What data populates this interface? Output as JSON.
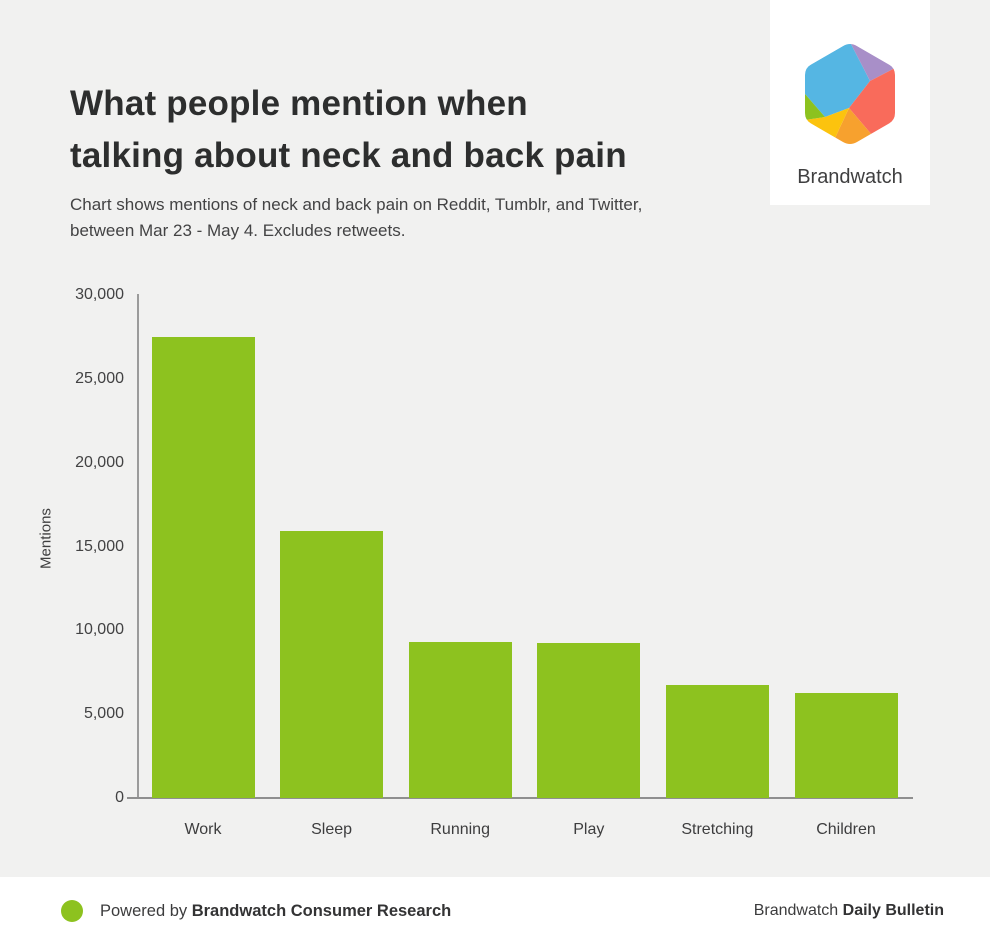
{
  "header": {
    "title_line1": "What people mention when",
    "title_line2": "talking about neck and back pain",
    "subtitle_line1": "Chart shows mentions of neck and back pain on Reddit, Tumblr, and Twitter,",
    "subtitle_line2": "between Mar 23 - May 4. Excludes retweets."
  },
  "logo": {
    "wordmark": "Brandwatch",
    "facets": {
      "blue": "#55b6e3",
      "purple": "#a88fc8",
      "coral": "#f96b5b",
      "orange": "#f7a12e",
      "yellow": "#fcc30e",
      "green": "#8cc21f"
    }
  },
  "chart_data": {
    "type": "bar",
    "title": "What people mention when talking about neck and back pain",
    "subtitle": "Chart shows mentions of neck and back pain on Reddit, Tumblr, and Twitter, between Mar 23 - May 4. Excludes retweets.",
    "categories": [
      "Work",
      "Sleep",
      "Running",
      "Play",
      "Stretching",
      "Children"
    ],
    "values": [
      27500,
      15900,
      9300,
      9250,
      6750,
      6250
    ],
    "xlabel": "",
    "ylabel": "Mentions",
    "ylim": [
      0,
      30000
    ],
    "yticks": {
      "values": [
        0,
        5000,
        10000,
        15000,
        20000,
        25000,
        30000
      ],
      "labels": [
        "0",
        "5,000",
        "10,000",
        "15,000",
        "20,000",
        "25,000",
        "30,000"
      ]
    },
    "grid": false,
    "legend": null,
    "bar_color": "#8dc21f"
  },
  "footer": {
    "powered_prefix": "Powered by ",
    "powered_bold": "Brandwatch Consumer Research",
    "right_prefix": "Brandwatch ",
    "right_bold": "Daily Bulletin",
    "dot_color": "#8dc21f"
  },
  "colors": {
    "background": "#f1f1f0",
    "panel_white": "#ffffff",
    "axis": "#9b9b9b",
    "text_dark": "#2d2e2e",
    "text_gray": "#434344"
  }
}
